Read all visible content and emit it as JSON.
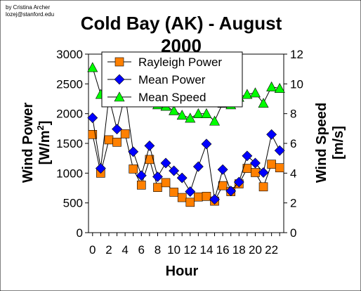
{
  "credit": {
    "line1": "by Cristina Archer",
    "line2": "lozej@stanford.edu"
  },
  "chart_data": {
    "type": "line",
    "title_line1": "Cold Bay (AK) - August",
    "title_line2": "2000",
    "xlabel": "Hour",
    "ylabel_left_main": "Wind Power",
    "ylabel_left_unit_prefix": "[W/m",
    "ylabel_left_unit_sup": "2",
    "ylabel_left_unit_suffix": "]",
    "ylabel_right_main": "Wind Speed",
    "ylabel_right_unit": "[m/s]",
    "xlim": [
      -0.5,
      23.5
    ],
    "ylim_left": [
      0,
      3000
    ],
    "ylim_right": [
      0,
      12
    ],
    "x_ticks": [
      "0",
      "2",
      "4",
      "6",
      "8",
      "10",
      "12",
      "14",
      "16",
      "18",
      "20",
      "22"
    ],
    "x_tick_values": [
      0,
      2,
      4,
      6,
      8,
      10,
      12,
      14,
      16,
      18,
      20,
      22
    ],
    "y_left_ticks": [
      "0",
      "500",
      "1000",
      "1500",
      "2000",
      "2500",
      "3000"
    ],
    "y_left_tick_values": [
      0,
      500,
      1000,
      1500,
      2000,
      2500,
      3000
    ],
    "y_right_ticks": [
      "0",
      "2",
      "4",
      "6",
      "8",
      "10",
      "12"
    ],
    "y_right_tick_values": [
      0,
      2,
      4,
      6,
      8,
      10,
      12
    ],
    "legend_position": "top-center",
    "grid": false,
    "x": [
      0,
      1,
      2,
      3,
      4,
      5,
      6,
      7,
      8,
      9,
      10,
      11,
      12,
      13,
      14,
      15,
      16,
      17,
      18,
      19,
      20,
      21,
      22,
      23
    ],
    "series": [
      {
        "name": "Rayleigh Power",
        "axis": "left",
        "marker": "square",
        "color": "#FF8000",
        "values": [
          1650,
          1000,
          1560,
          1520,
          1660,
          1070,
          800,
          1230,
          760,
          840,
          680,
          590,
          510,
          600,
          610,
          530,
          790,
          690,
          820,
          1080,
          1010,
          770,
          1150,
          1090
        ]
      },
      {
        "name": "Mean Power",
        "axis": "left",
        "marker": "diamond",
        "color": "#0000FF",
        "values": [
          1930,
          1080,
          2280,
          1740,
          2320,
          1360,
          960,
          1460,
          940,
          1170,
          1040,
          920,
          690,
          1110,
          1490,
          560,
          1060,
          700,
          850,
          1290,
          1170,
          1010,
          1650,
          1380
        ]
      },
      {
        "name": "Mean Speed",
        "axis": "right",
        "marker": "triangle",
        "color": "#00FF00",
        "values": [
          11.1,
          9.3,
          10.2,
          9.5,
          10.3,
          9.5,
          8.9,
          9.4,
          8.6,
          8.5,
          8.2,
          7.9,
          7.7,
          8.0,
          8.0,
          7.5,
          8.7,
          8.6,
          9.1,
          9.3,
          9.4,
          8.7,
          9.8,
          9.7
        ]
      }
    ]
  }
}
